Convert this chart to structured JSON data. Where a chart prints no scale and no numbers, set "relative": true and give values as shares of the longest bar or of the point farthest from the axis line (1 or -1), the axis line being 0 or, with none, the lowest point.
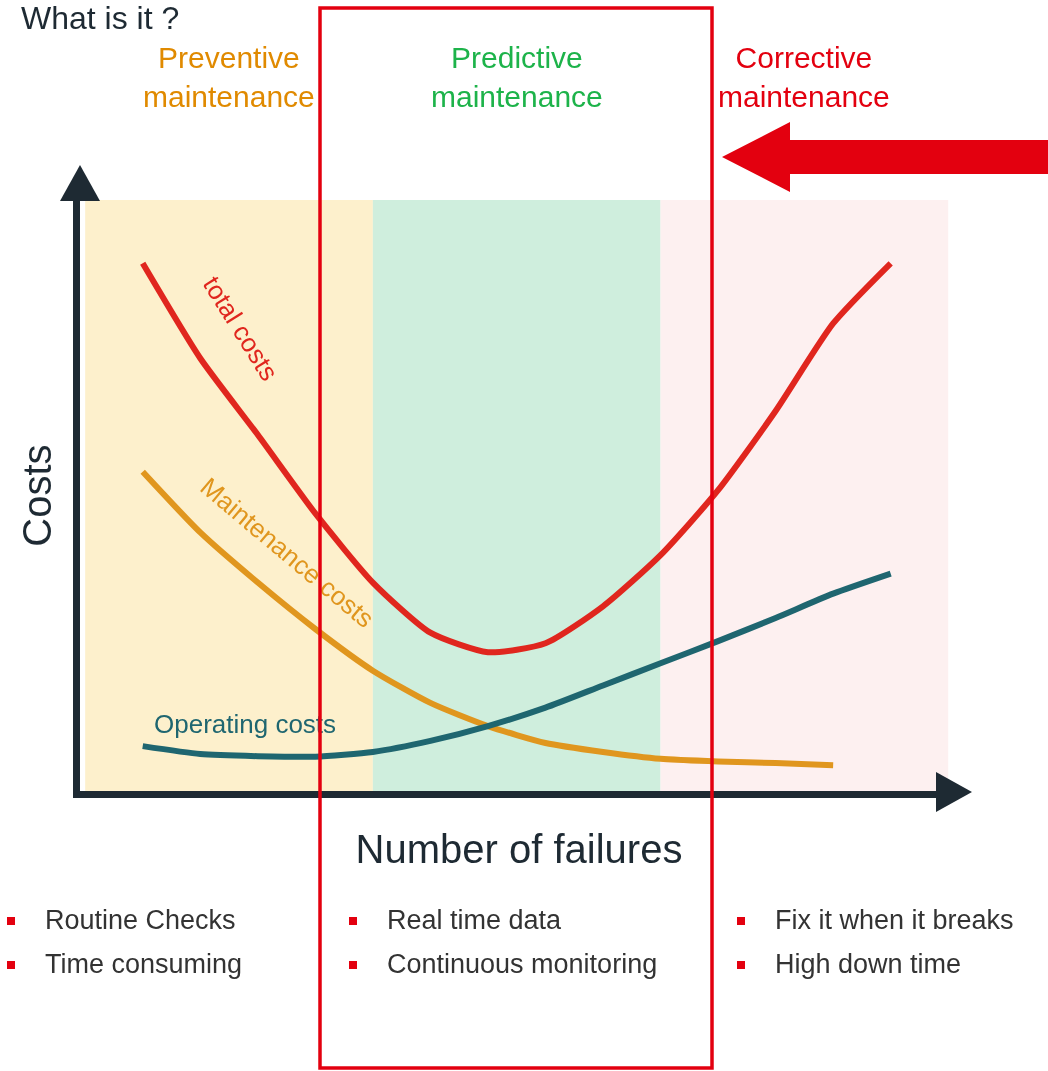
{
  "chart_data": {
    "type": "line",
    "relative": true,
    "title": "What is it ?",
    "xlabel": "Number of failures",
    "ylabel": "Costs",
    "categories": [
      null,
      null,
      null,
      null,
      null,
      null,
      null,
      null,
      null,
      null,
      null,
      null,
      null,
      null,
      null,
      null
    ],
    "series": [
      {
        "name": "total costs",
        "color": "#e0261e",
        "values": [
          null,
          1.0,
          0.82,
          0.675,
          0.526,
          0.395,
          0.3,
          0.263,
          0.28,
          0.35,
          0.447,
          0.57,
          0.72,
          0.886,
          1.0,
          null
        ]
      },
      {
        "name": "Maintenance costs",
        "color": "#e0961e",
        "values": [
          null,
          0.605,
          0.49,
          0.395,
          0.307,
          0.228,
          0.167,
          0.123,
          0.091,
          0.074,
          0.061,
          0.056,
          0.053,
          0.049,
          null,
          null
        ]
      },
      {
        "name": "Operating costs",
        "color": "#1f6670",
        "values": [
          null,
          0.085,
          0.07,
          0.066,
          0.065,
          0.074,
          0.095,
          0.123,
          0.158,
          0.2,
          0.242,
          0.284,
          0.328,
          0.374,
          0.412,
          null
        ]
      }
    ],
    "annotations": [
      "Preventive maintenance",
      "Predictive maintenance",
      "Corrective maintenance",
      "Routine Checks",
      "Time consuming",
      "Real time data",
      "Continuous monitoring",
      "Fix it when it breaks",
      "High down time"
    ],
    "grid": false,
    "legend": false,
    "tick_labels": false,
    "marker": "none",
    "line_style": "solid"
  }
}
